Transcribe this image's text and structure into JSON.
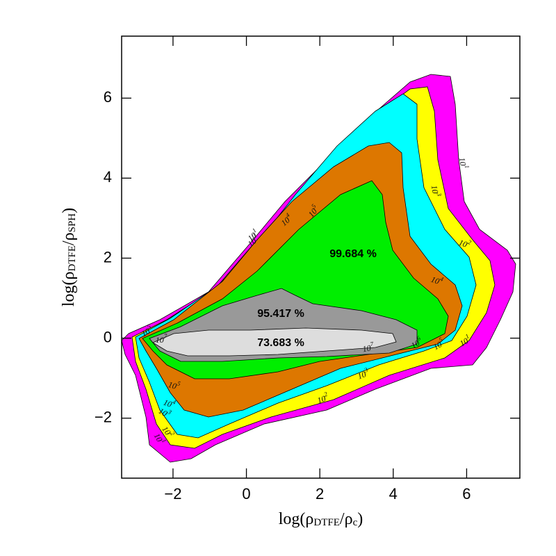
{
  "chart_data": {
    "type": "contour",
    "xlabel": [
      "log(ρ",
      "DTFE",
      "/ρ",
      "c",
      ")"
    ],
    "ylabel": [
      "log(ρ",
      "DTFE",
      "/ρ",
      "SPH",
      ")"
    ],
    "xlim": [
      -3.4,
      7.45
    ],
    "ylim": [
      -3.5,
      7.55
    ],
    "xticks": [
      {
        "value": -2,
        "label": "−2"
      },
      0,
      2,
      4,
      6
    ],
    "yticks": [
      {
        "value": -2,
        "label": "−2"
      },
      0,
      2,
      4,
      6
    ],
    "levels": [
      {
        "base": "10",
        "exp": "1",
        "color": "#ff00ff"
      },
      {
        "base": "10",
        "exp": "2",
        "color": "#ffff00"
      },
      {
        "base": "10",
        "exp": "3",
        "color": "#00ffff"
      },
      {
        "base": "10",
        "exp": "4",
        "color": "#dd7700"
      },
      {
        "base": "10",
        "exp": "5",
        "color": "#00ee00"
      },
      {
        "base": "10",
        "exp": "6",
        "color": "#999999"
      },
      {
        "base": "10",
        "exp": "7",
        "color": "#dddddd"
      }
    ],
    "annotations": [
      "99.684 %",
      "95.417 %",
      "73.683 %"
    ]
  }
}
